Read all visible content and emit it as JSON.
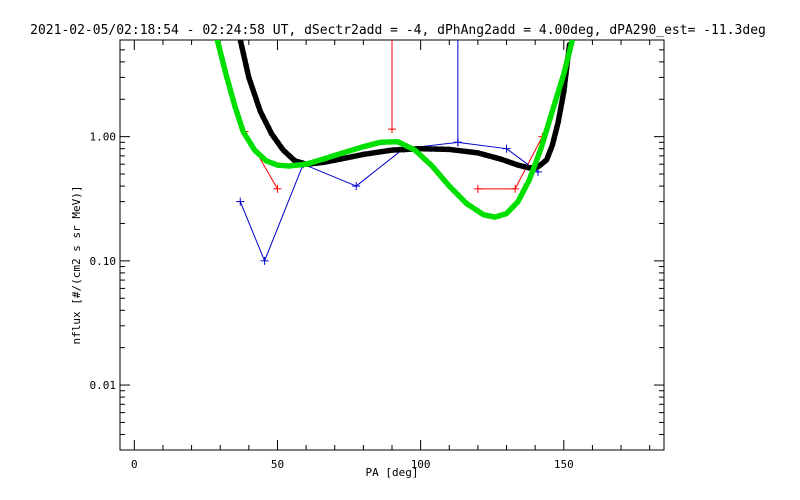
{
  "chart_data": {
    "type": "line",
    "title": "2021-02-05/02:18:54 - 02:24:58 UT, dSectr2add = -4, dPhAng2add = 4.00deg, dPA290_est= -11.3deg",
    "xlabel": "PA [deg]",
    "ylabel": "nflux [#/(cm2 s sr MeV)]",
    "xlim": [
      -5,
      185
    ],
    "ylim": [
      0.003,
      6
    ],
    "yscale": "log",
    "grid": false,
    "xticks": [
      {
        "value": 0,
        "label": "0"
      },
      {
        "value": 50,
        "label": "50"
      },
      {
        "value": 100,
        "label": "100"
      },
      {
        "value": 150,
        "label": "150"
      }
    ],
    "yticks": [
      {
        "value": 0.01,
        "label": "0.01"
      },
      {
        "value": 0.1,
        "label": "0.10"
      },
      {
        "value": 1,
        "label": "1.00"
      }
    ],
    "series": [
      {
        "color": "#ff0000",
        "style": "line-plus",
        "x": [
          38.5,
          50,
          90,
          90,
          120,
          133,
          142.5
        ],
        "y": [
          1.1,
          0.38,
          1.15,
          6,
          0.38,
          0.38,
          1.0
        ],
        "segments": [
          [
            0,
            1
          ],
          [
            2,
            3
          ],
          [
            4,
            5
          ],
          [
            5,
            6
          ]
        ]
      },
      {
        "color": "#0000cc",
        "style": "line-plus",
        "x": [
          37,
          45.5,
          59,
          77.5,
          94,
          113,
          130,
          141,
          113,
          113
        ],
        "y": [
          0.3,
          0.1,
          0.6,
          0.4,
          0.8,
          0.9,
          0.8,
          0.52,
          0.9,
          6
        ],
        "segments": [
          [
            0,
            1
          ],
          [
            1,
            2
          ],
          [
            2,
            3
          ],
          [
            3,
            4
          ],
          [
            4,
            5
          ],
          [
            5,
            6
          ],
          [
            6,
            7
          ],
          [
            8,
            9
          ]
        ]
      },
      {
        "color": "#000000",
        "style": "thick-dashed",
        "x": [
          37,
          40,
          44,
          48,
          52,
          56,
          60,
          66,
          72,
          80,
          90,
          100,
          110,
          120,
          128,
          134,
          138,
          141,
          144,
          146,
          148,
          150,
          152
        ],
        "y": [
          6,
          3.0,
          1.6,
          1.05,
          0.78,
          0.64,
          0.6,
          0.62,
          0.66,
          0.72,
          0.78,
          0.8,
          0.79,
          0.74,
          0.66,
          0.59,
          0.56,
          0.57,
          0.65,
          0.85,
          1.3,
          2.3,
          5.5
        ]
      },
      {
        "color": "#00e000",
        "style": "thick-dashed",
        "x": [
          29,
          32,
          35,
          38,
          42,
          46,
          50,
          54,
          60,
          66,
          72,
          80,
          86,
          92,
          98,
          104,
          110,
          116,
          122,
          126,
          130,
          134,
          138,
          142,
          146,
          150,
          153
        ],
        "y": [
          6,
          3.2,
          1.8,
          1.1,
          0.78,
          0.64,
          0.59,
          0.58,
          0.6,
          0.66,
          0.73,
          0.83,
          0.9,
          0.91,
          0.78,
          0.58,
          0.4,
          0.29,
          0.235,
          0.225,
          0.24,
          0.3,
          0.45,
          0.8,
          1.6,
          3.2,
          6
        ]
      }
    ]
  }
}
